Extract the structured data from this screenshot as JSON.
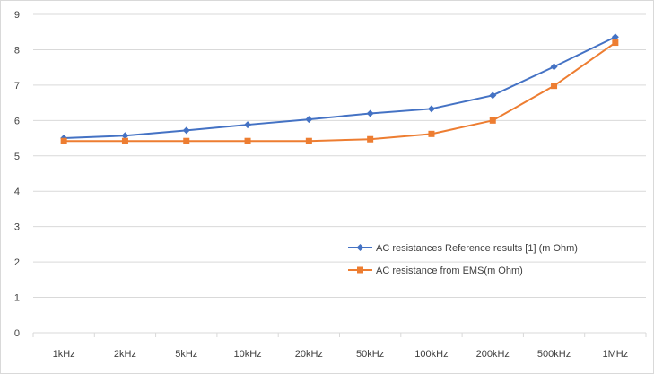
{
  "chart_data": {
    "type": "line",
    "title": "",
    "xlabel": "",
    "ylabel": "",
    "categories": [
      "1kHz",
      "2kHz",
      "5kHz",
      "10kHz",
      "20kHz",
      "50kHz",
      "100kHz",
      "200kHz",
      "500kHz",
      "1MHz"
    ],
    "ylim": [
      0,
      9
    ],
    "yticks": [
      0,
      1,
      2,
      3,
      4,
      5,
      6,
      7,
      8,
      9
    ],
    "grid": true,
    "legend_position": "bottom-right",
    "series": [
      {
        "name": "AC resistances Reference results [1] (m Ohm)",
        "color": "#4472c4",
        "marker": "diamond",
        "values": [
          5.5,
          5.57,
          5.72,
          5.88,
          6.03,
          6.2,
          6.33,
          6.71,
          7.52,
          8.36
        ]
      },
      {
        "name": "AC resistance from EMS(m Ohm)",
        "color": "#ed7d31",
        "marker": "square",
        "values": [
          5.42,
          5.42,
          5.42,
          5.42,
          5.42,
          5.47,
          5.62,
          6.0,
          6.98,
          8.2
        ]
      }
    ]
  }
}
